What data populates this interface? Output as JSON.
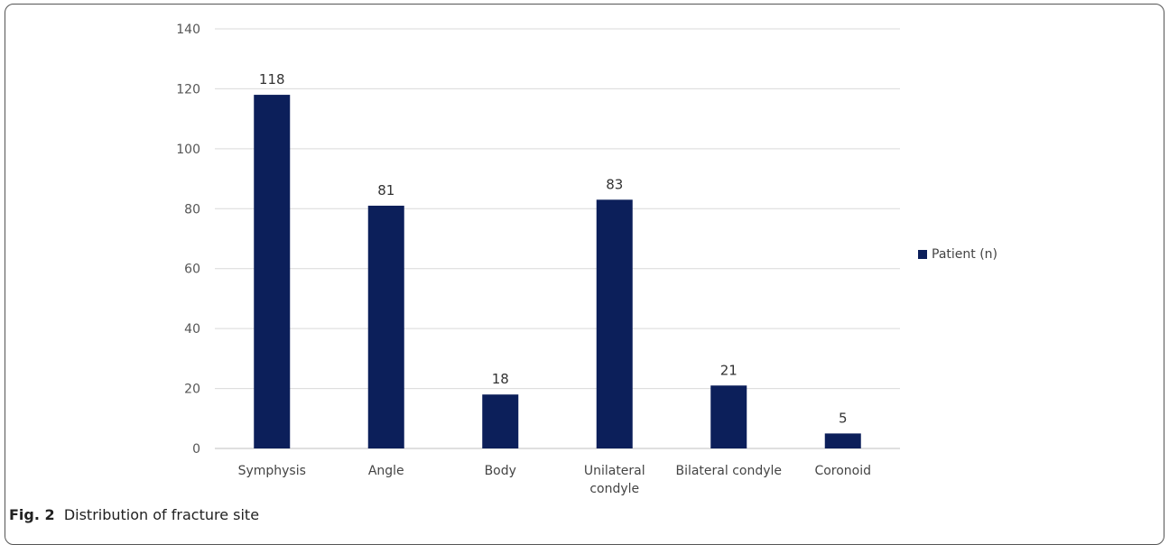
{
  "chart_data": {
    "type": "bar",
    "categories": [
      "Symphysis",
      "Angle",
      "Body",
      "Unilateral condyle",
      "Bilateral condyle",
      "Coronoid"
    ],
    "category_lines": [
      [
        "Symphysis"
      ],
      [
        "Angle"
      ],
      [
        "Body"
      ],
      [
        "Unilateral",
        "condyle"
      ],
      [
        "Bilateral condyle"
      ],
      [
        "Coronoid"
      ]
    ],
    "series": [
      {
        "name": "Patient (n)",
        "values": [
          118,
          81,
          18,
          83,
          21,
          5
        ],
        "color": "#0c1f5a"
      }
    ],
    "ylim": [
      0,
      140
    ],
    "yticks": [
      0,
      20,
      40,
      60,
      80,
      100,
      120,
      140
    ],
    "grid": true,
    "legend_position": "right",
    "data_labels": true
  },
  "caption": {
    "label": "Fig. 2",
    "text": "Distribution of fracture site"
  }
}
